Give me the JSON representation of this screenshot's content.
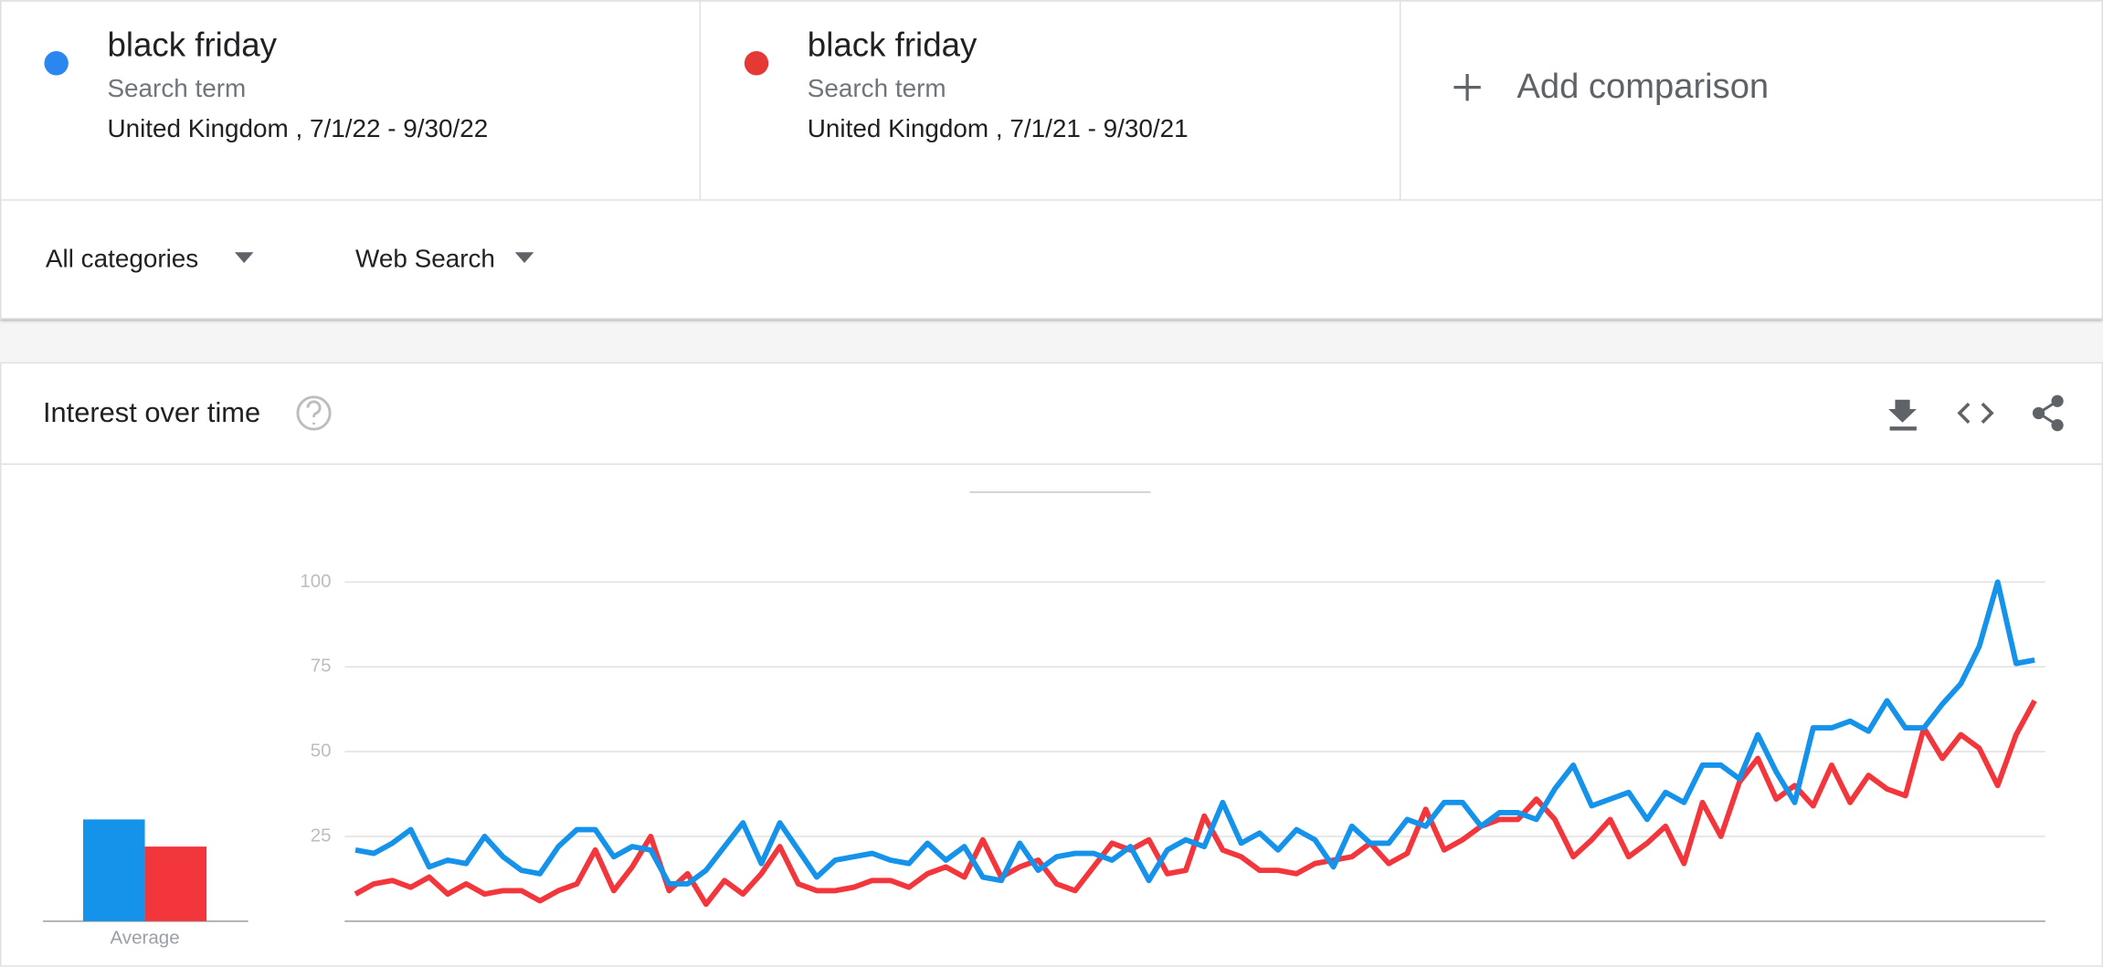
{
  "comparison": [
    {
      "kind": "Search term",
      "scope": "United Kingdom , 7/1/22 - 9/30/22"
    },
    {
      "kind": "Search term",
      "scope": "United Kingdom , 7/1/21 - 9/30/21"
    }
  ],
  "add_comparison": "Add comparison",
  "filters": [
    "All categories",
    "Web Search"
  ],
  "section_title": "Interest over time",
  "chart_data": {
    "type": "line",
    "series": [
      {
        "name": "black friday",
        "color": "#1592ea",
        "values": [
          21,
          20,
          23,
          27,
          16,
          18,
          17,
          25,
          19,
          15,
          14,
          22,
          27,
          27,
          19,
          22,
          21,
          11,
          11,
          15,
          22,
          29,
          17,
          29,
          21,
          13,
          18,
          19,
          20,
          18,
          17,
          23,
          18,
          22,
          13,
          12,
          23,
          15,
          19,
          20,
          20,
          18,
          22,
          12,
          21,
          24,
          22,
          35,
          23,
          26,
          21,
          27,
          24,
          16,
          28,
          23,
          23,
          30,
          28,
          35,
          35,
          28,
          32,
          32,
          30,
          39,
          46,
          34,
          36,
          38,
          30,
          38,
          35,
          46,
          46,
          42,
          55,
          44,
          35,
          57,
          57,
          59,
          56,
          65,
          57,
          57,
          64,
          70,
          81,
          100,
          76,
          77
        ]
      },
      {
        "name": "black friday",
        "color": "#f2363c",
        "values": [
          8,
          11,
          12,
          10,
          13,
          8,
          11,
          8,
          9,
          9,
          6,
          9,
          11,
          21,
          9,
          16,
          25,
          9,
          14,
          5,
          12,
          8,
          14,
          22,
          11,
          9,
          9,
          10,
          12,
          12,
          10,
          14,
          16,
          13,
          24,
          13,
          16,
          18,
          11,
          9,
          16,
          23,
          21,
          24,
          14,
          15,
          31,
          21,
          19,
          15,
          15,
          14,
          17,
          18,
          19,
          23,
          17,
          20,
          33,
          21,
          24,
          28,
          30,
          30,
          36,
          30,
          19,
          24,
          30,
          19,
          23,
          28,
          17,
          35,
          25,
          41,
          48,
          36,
          40,
          34,
          46,
          35,
          43,
          39,
          37,
          57,
          48,
          55,
          51,
          40,
          55,
          65
        ]
      }
    ],
    "ylim": [
      0,
      100
    ],
    "yticks": [
      25,
      50,
      75,
      100
    ],
    "grid": true,
    "average": {
      "label": "Average",
      "values": [
        30,
        22
      ]
    }
  }
}
